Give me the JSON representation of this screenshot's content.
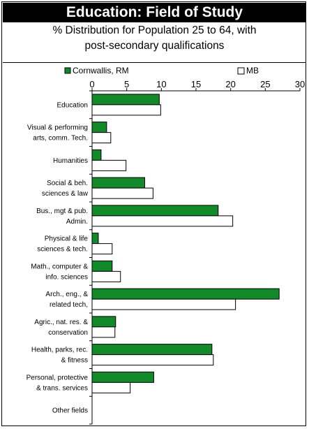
{
  "title": "Education: Field of Study",
  "subtitle_line1": "% Distribution for Population 25 to 64, with",
  "subtitle_line2": "post-secondary qualifications",
  "colors": {
    "cornwallis": "#128a2a",
    "mb": "#ffffff",
    "stroke": "#000000"
  },
  "chart_data": {
    "type": "bar",
    "orientation": "horizontal",
    "xlim": [
      0,
      30
    ],
    "ticks": [
      0,
      5,
      10,
      15,
      20,
      25,
      30
    ],
    "legend_position": "top",
    "grid": false,
    "categories": [
      [
        "Education"
      ],
      [
        "Visual & performing",
        "arts, comm. Tech."
      ],
      [
        "Humanities"
      ],
      [
        "Social & beh.",
        "sciences & law"
      ],
      [
        "Bus., mgt & pub.",
        "Admin."
      ],
      [
        "Physical & life",
        "sciences & tech."
      ],
      [
        "Math., computer &",
        "info. sciences"
      ],
      [
        "Arch., eng., &",
        "related tech,"
      ],
      [
        "Agric., nat. res. &",
        "conservation"
      ],
      [
        "Health, parks, rec.",
        "& fitness"
      ],
      [
        "Personal, protective",
        "& trans. services"
      ],
      [
        "Other fields"
      ]
    ],
    "series": [
      {
        "name": "Cornwallis, RM",
        "values": [
          9.7,
          2.1,
          1.3,
          7.6,
          18.2,
          0.9,
          2.9,
          27.0,
          3.4,
          17.3,
          8.9,
          0
        ]
      },
      {
        "name": "MB",
        "values": [
          9.9,
          2.7,
          4.9,
          8.8,
          20.3,
          2.9,
          4.1,
          20.7,
          3.3,
          17.5,
          5.5,
          0
        ]
      }
    ]
  }
}
